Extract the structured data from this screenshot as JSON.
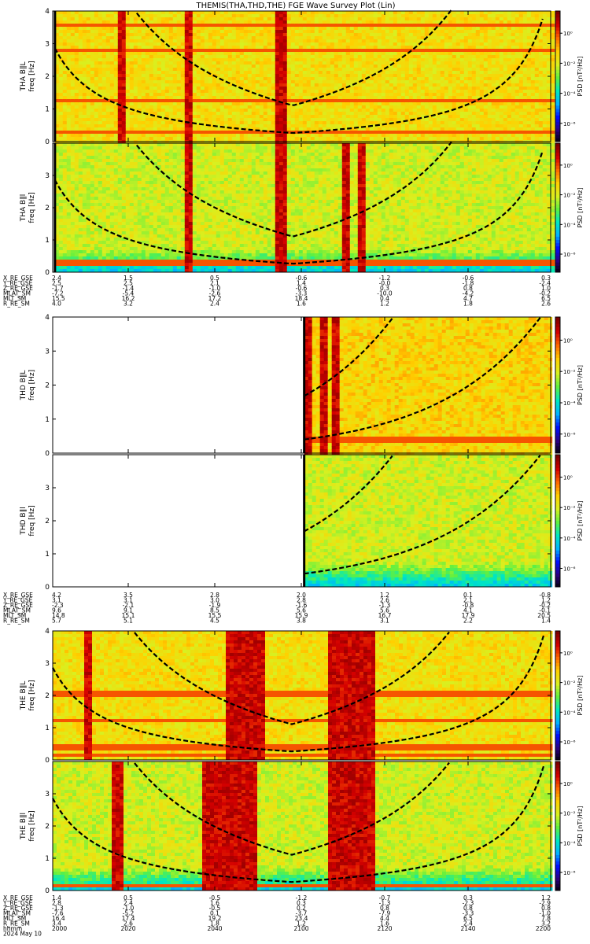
{
  "title": "THEMIS(THA,THD,THE) FGE Wave Survey Plot (Lin)",
  "colors": {
    "background": "#ffffff",
    "colormap": [
      "#000000",
      "#2a007f",
      "#0010ff",
      "#00b4ff",
      "#00e8c0",
      "#60f040",
      "#d8f020",
      "#ffd000",
      "#ff6a00",
      "#d40000",
      "#7a0000"
    ]
  },
  "chart_data": [
    {
      "id": "tha_bl",
      "type": "heatmap",
      "probe": "THA",
      "ylabel_top": "THA B∥L",
      "ylabel_bottom": "freq [Hz]",
      "yticks": [
        "0",
        "1",
        "2",
        "3",
        "4"
      ],
      "ylim": [
        0,
        4
      ],
      "xlim": [
        2000,
        2200
      ],
      "data_start": 2000.9,
      "colorbar": {
        "label": "PSD [nT²/Hz]",
        "ticks": [
          "10⁰",
          "10⁻²",
          "10⁻⁴",
          "10⁻⁶"
        ]
      },
      "red_bands": [
        [
          2026,
          2028
        ],
        [
          2052,
          2055
        ],
        [
          2088,
          2093
        ]
      ],
      "spectral_lines": [
        0.35,
        1.3,
        2.85,
        3.6
      ]
    },
    {
      "id": "tha_bll",
      "type": "heatmap",
      "probe": "THA",
      "ylabel_top": "THA B∥l",
      "ylabel_bottom": "freq [Hz]",
      "yticks": [
        "0",
        "1",
        "2",
        "3"
      ],
      "ylim": [
        0,
        4
      ],
      "xlim": [
        2000,
        2200
      ],
      "data_start": 2000.9,
      "colorbar": {
        "label": "PSD [nT²/Hz]",
        "ticks": [
          "10⁰",
          "10⁻²",
          "10⁻⁴",
          "10⁻⁶"
        ]
      },
      "red_bands": [
        [
          2052,
          2055
        ],
        [
          2088,
          2094
        ],
        [
          2116,
          2118
        ],
        [
          2121,
          2125
        ]
      ],
      "spectral_lines": [
        0.35
      ]
    },
    {
      "id": "tha_orbit",
      "type": "table",
      "rows": [
        {
          "label": "X_RE_GSE",
          "values": [
            "2.4",
            "1.5",
            "0.5",
            "-0.6",
            "-1.2",
            "-0.6",
            "0.3"
          ]
        },
        {
          "label": "Y_RE_GSE",
          "values": [
            "2.5",
            "2.5",
            "2.1",
            "1.4",
            "-0.0",
            "-1.8",
            "-2.4"
          ]
        },
        {
          "label": "Z_RE_GSE",
          "values": [
            "-1.7",
            "-1.4",
            "-1.0",
            "-0.6",
            "0.3",
            "0.8",
            "1.0"
          ]
        },
        {
          "label": "MLAT_SM",
          "values": [
            "-7.2",
            "-5.4",
            "-2.6",
            "-3.3",
            "-10.0",
            "-4.2",
            "-0.2"
          ]
        },
        {
          "label": "MLT_SM",
          "values": [
            "15.5",
            "16.2",
            "17.2",
            "18.4",
            "0.4",
            "4.7",
            "6.5"
          ]
        },
        {
          "label": "R_RE_SM",
          "values": [
            "4.0",
            "3.2",
            "2.4",
            "1.6",
            "1.2",
            "1.8",
            "2.6"
          ]
        }
      ]
    },
    {
      "id": "thd_bl",
      "type": "heatmap",
      "probe": "THD",
      "ylabel_top": "THD B∥L",
      "ylabel_bottom": "freq [Hz]",
      "yticks": [
        "0",
        "1",
        "2",
        "3",
        "4"
      ],
      "ylim": [
        0,
        4
      ],
      "xlim": [
        2000,
        2200
      ],
      "data_start": 2101,
      "colorbar": {
        "label": "PSD [nT²/Hz]",
        "ticks": [
          "10⁰",
          "10⁻²",
          "10⁻⁴",
          "10⁻⁶"
        ]
      },
      "red_bands": [
        [
          2101,
          2104
        ],
        [
          2106,
          2109
        ],
        [
          2111,
          2115
        ]
      ],
      "spectral_lines": [
        0.4,
        0.5
      ]
    },
    {
      "id": "thd_bll",
      "type": "heatmap",
      "probe": "THD",
      "ylabel_top": "THD B∥l",
      "ylabel_bottom": "freq [Hz]",
      "yticks": [
        "0",
        "1",
        "2",
        "3"
      ],
      "ylim": [
        0,
        4
      ],
      "xlim": [
        2000,
        2200
      ],
      "data_start": 2101,
      "colorbar": {
        "label": "PSD [nT²/Hz]",
        "ticks": [
          "10⁰",
          "10⁻²",
          "10⁻⁴",
          "10⁻⁶"
        ]
      },
      "red_bands": [],
      "spectral_lines": []
    },
    {
      "id": "thd_orbit",
      "type": "table",
      "rows": [
        {
          "label": "X_RE_GSE",
          "values": [
            "4.2",
            "3.5",
            "2.8",
            "2.0",
            "1.2",
            "0.1",
            "-0.8"
          ]
        },
        {
          "label": "Y_RE_GSE",
          "values": [
            "3.1",
            "3.1",
            "3.0",
            "2.8",
            "2.6",
            "2.1",
            "1.2"
          ]
        },
        {
          "label": "Z_RE_GSE",
          "values": [
            "-2.3",
            "-2.1",
            "-1.9",
            "-1.6",
            "-1.3",
            "-0.8",
            "-0.2"
          ]
        },
        {
          "label": "MLAT_SM",
          "values": [
            "9.6",
            "9.1",
            "8.5",
            "5.6",
            "5.6",
            "4.1",
            "-0.1"
          ]
        },
        {
          "label": "MLT_SM",
          "values": [
            "14.8",
            "15.1",
            "15.5",
            "15.9",
            "16.7",
            "17.9",
            "20.5"
          ]
        },
        {
          "label": "R_RE_SM",
          "values": [
            "5.7",
            "5.1",
            "4.5",
            "3.8",
            "3.1",
            "2.2",
            "1.4"
          ]
        }
      ]
    },
    {
      "id": "the_bl",
      "type": "heatmap",
      "probe": "THE",
      "ylabel_top": "THE B∥L",
      "ylabel_bottom": "freq [Hz]",
      "yticks": [
        "0",
        "1",
        "2",
        "3",
        "4"
      ],
      "ylim": [
        0,
        4
      ],
      "xlim": [
        2000,
        2200
      ],
      "data_start": 2000,
      "colorbar": {
        "label": "PSD [nT²/Hz]",
        "ticks": [
          "10⁰",
          "10⁻²",
          "10⁻⁴",
          "10⁻⁶"
        ]
      },
      "red_bands": [
        [
          2012,
          2015
        ],
        [
          2069,
          2085
        ],
        [
          2110,
          2128
        ]
      ],
      "spectral_lines": [
        0.2,
        0.45,
        1.3,
        2.1
      ]
    },
    {
      "id": "the_bll",
      "type": "heatmap",
      "probe": "THE",
      "ylabel_top": "THE B∥l",
      "ylabel_bottom": "freq [Hz]",
      "yticks": [
        "0",
        "1",
        "2",
        "3"
      ],
      "ylim": [
        0,
        4
      ],
      "xlim": [
        2000,
        2200
      ],
      "data_start": 2000,
      "colorbar": {
        "label": "PSD [nT²/Hz]",
        "ticks": [
          "10⁰",
          "10⁻²",
          "10⁻⁴",
          "10⁻⁶"
        ]
      },
      "red_bands": [
        [
          2023,
          2027
        ],
        [
          2060,
          2082
        ],
        [
          2110,
          2128
        ]
      ],
      "spectral_lines": [
        0.2
      ]
    },
    {
      "id": "the_orbit",
      "type": "table",
      "rows": [
        {
          "label": "X_RE_GSE",
          "values": [
            "1.4",
            "0.5",
            "-0.5",
            "-1.2",
            "-0.7",
            "0.3",
            "1.2"
          ]
        },
        {
          "label": "Y_RE_GSE",
          "values": [
            "2.8",
            "2.4",
            "1.6",
            "0.3",
            "-1.3",
            "-2.3",
            "-2.9"
          ]
        },
        {
          "label": "Z_RE_GSE",
          "values": [
            "-1.3",
            "-1.0",
            "-0.5",
            "0.2",
            "0.8",
            "0.8",
            "0.8"
          ]
        },
        {
          "label": "MLAT_SM",
          "values": [
            "-7.6",
            "-5.2",
            "0.1",
            "-3.7",
            "-7.9",
            "-3.3",
            "-1.0"
          ]
        },
        {
          "label": "MLT_SM",
          "values": [
            "16.4",
            "17.4",
            "19.2",
            "23.4",
            "4.4",
            "6.5",
            "7.8"
          ]
        },
        {
          "label": "R_RE_SM",
          "values": [
            "3.4",
            "2.6",
            "1.8",
            "1.2",
            "1.6",
            "2.4",
            "3.2"
          ]
        },
        {
          "label": "hhmm",
          "values": [
            "2000",
            "2020",
            "2040",
            "2100",
            "2120",
            "2140",
            "2200"
          ]
        },
        {
          "label": "2024 May 10",
          "values": []
        }
      ]
    }
  ]
}
